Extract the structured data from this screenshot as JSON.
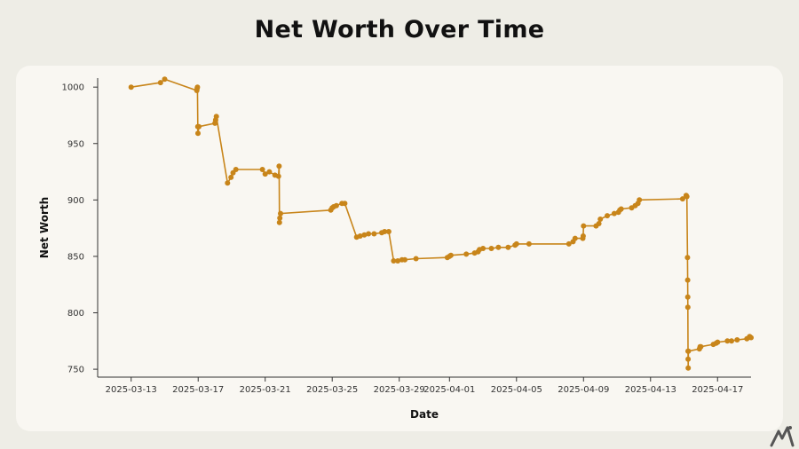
{
  "page": {
    "title": "Net Worth Over Time"
  },
  "colors": {
    "accent": "#c8851a",
    "background": "#eeede6",
    "card": "#f9f7f2"
  },
  "logo": {
    "icon": "itmedia-logo-icon"
  },
  "chart_data": {
    "type": "line",
    "title": "Net Worth Over Time",
    "xlabel": "Date",
    "ylabel": "Net Worth",
    "x_type": "date",
    "xlim": [
      "2025-03-11",
      "2025-04-19"
    ],
    "ylim": [
      743,
      1008
    ],
    "yticks": [
      750,
      800,
      850,
      900,
      950,
      1000
    ],
    "xticks": [
      "2025-03-13",
      "2025-03-17",
      "2025-03-21",
      "2025-03-25",
      "2025-03-29",
      "2025-04-01",
      "2025-04-05",
      "2025-04-09",
      "2025-04-13",
      "2025-04-17"
    ],
    "grid": false,
    "markers": true,
    "series": [
      {
        "color": "#c8851a",
        "points": [
          [
            "2025-03-13T00:00",
            1000
          ],
          [
            "2025-03-14T18:00",
            1004
          ],
          [
            "2025-03-15T00:00",
            1007
          ],
          [
            "2025-03-16T22:00",
            997
          ],
          [
            "2025-03-16T22:30",
            999
          ],
          [
            "2025-03-16T23:00",
            1000
          ],
          [
            "2025-03-16T23:30",
            965
          ],
          [
            "2025-03-16T23:45",
            959
          ],
          [
            "2025-03-17T01:00",
            965
          ],
          [
            "2025-03-18T00:00",
            968
          ],
          [
            "2025-03-18T01:00",
            971
          ],
          [
            "2025-03-18T02:00",
            974
          ],
          [
            "2025-03-18T18:00",
            915
          ],
          [
            "2025-03-18T23:00",
            920
          ],
          [
            "2025-03-19T02:00",
            924
          ],
          [
            "2025-03-19T06:00",
            927
          ],
          [
            "2025-03-20T20:00",
            927
          ],
          [
            "2025-03-21T00:00",
            923
          ],
          [
            "2025-03-21T06:00",
            925
          ],
          [
            "2025-03-21T14:00",
            922
          ],
          [
            "2025-03-21T19:00",
            921
          ],
          [
            "2025-03-21T20:00",
            930
          ],
          [
            "2025-03-21T20:30",
            880
          ],
          [
            "2025-03-21T21:00",
            884
          ],
          [
            "2025-03-21T22:00",
            888
          ],
          [
            "2025-03-24T22:00",
            891
          ],
          [
            "2025-03-25T00:00",
            893
          ],
          [
            "2025-03-25T02:00",
            894
          ],
          [
            "2025-03-25T06:00",
            895
          ],
          [
            "2025-03-25T14:00",
            897
          ],
          [
            "2025-03-25T18:00",
            897
          ],
          [
            "2025-03-26T11:00",
            867
          ],
          [
            "2025-03-26T16:00",
            868
          ],
          [
            "2025-03-26T22:00",
            869
          ],
          [
            "2025-03-27T04:00",
            870
          ],
          [
            "2025-03-27T12:00",
            870
          ],
          [
            "2025-03-27T23:00",
            871
          ],
          [
            "2025-03-28T03:00",
            872
          ],
          [
            "2025-03-28T09:00",
            872
          ],
          [
            "2025-03-28T16:00",
            846
          ],
          [
            "2025-03-28T22:00",
            846
          ],
          [
            "2025-03-29T04:00",
            847
          ],
          [
            "2025-03-29T08:00",
            847
          ],
          [
            "2025-03-30T00:00",
            848
          ],
          [
            "2025-03-31T21:00",
            849
          ],
          [
            "2025-04-01T00:00",
            850
          ],
          [
            "2025-04-01T02:00",
            851
          ],
          [
            "2025-04-02T00:00",
            852
          ],
          [
            "2025-04-02T12:00",
            853
          ],
          [
            "2025-04-02T17:00",
            854
          ],
          [
            "2025-04-02T19:00",
            856
          ],
          [
            "2025-04-03T00:00",
            857
          ],
          [
            "2025-04-03T12:00",
            857
          ],
          [
            "2025-04-03T22:00",
            858
          ],
          [
            "2025-04-04T12:00",
            858
          ],
          [
            "2025-04-04T22:00",
            860
          ],
          [
            "2025-04-05T00:00",
            861
          ],
          [
            "2025-04-05T18:00",
            861
          ],
          [
            "2025-04-08T03:00",
            861
          ],
          [
            "2025-04-08T09:00",
            863
          ],
          [
            "2025-04-08T12:00",
            866
          ],
          [
            "2025-04-08T23:00",
            866
          ],
          [
            "2025-04-08T23:30",
            868
          ],
          [
            "2025-04-09T00:00",
            877
          ],
          [
            "2025-04-09T18:00",
            877
          ],
          [
            "2025-04-09T22:00",
            879
          ],
          [
            "2025-04-10T00:00",
            883
          ],
          [
            "2025-04-10T10:00",
            886
          ],
          [
            "2025-04-10T20:00",
            888
          ],
          [
            "2025-04-11T02:00",
            889
          ],
          [
            "2025-04-11T04:00",
            891
          ],
          [
            "2025-04-11T06:00",
            892
          ],
          [
            "2025-04-11T21:00",
            893
          ],
          [
            "2025-04-12T02:00",
            895
          ],
          [
            "2025-04-12T06:00",
            897
          ],
          [
            "2025-04-12T08:00",
            900
          ],
          [
            "2025-04-14T22:00",
            901
          ],
          [
            "2025-04-15T03:00",
            904
          ],
          [
            "2025-04-15T04:00",
            903
          ],
          [
            "2025-04-15T05:00",
            849
          ],
          [
            "2025-04-15T05:10",
            829
          ],
          [
            "2025-04-15T05:20",
            814
          ],
          [
            "2025-04-15T05:30",
            805
          ],
          [
            "2025-04-15T05:40",
            766
          ],
          [
            "2025-04-15T05:50",
            759
          ],
          [
            "2025-04-15T06:00",
            751
          ],
          [
            "2025-04-15T06:10",
            766
          ],
          [
            "2025-04-15T22:00",
            768
          ],
          [
            "2025-04-15T23:00",
            770
          ],
          [
            "2025-04-16T00:00",
            770
          ],
          [
            "2025-04-16T18:00",
            772
          ],
          [
            "2025-04-16T22:00",
            773
          ],
          [
            "2025-04-17T00:00",
            774
          ],
          [
            "2025-04-17T14:00",
            775
          ],
          [
            "2025-04-17T20:00",
            775
          ],
          [
            "2025-04-18T04:00",
            776
          ],
          [
            "2025-04-18T18:00",
            777
          ],
          [
            "2025-04-18T22:00",
            779
          ],
          [
            "2025-04-19T00:00",
            778
          ]
        ]
      }
    ]
  }
}
